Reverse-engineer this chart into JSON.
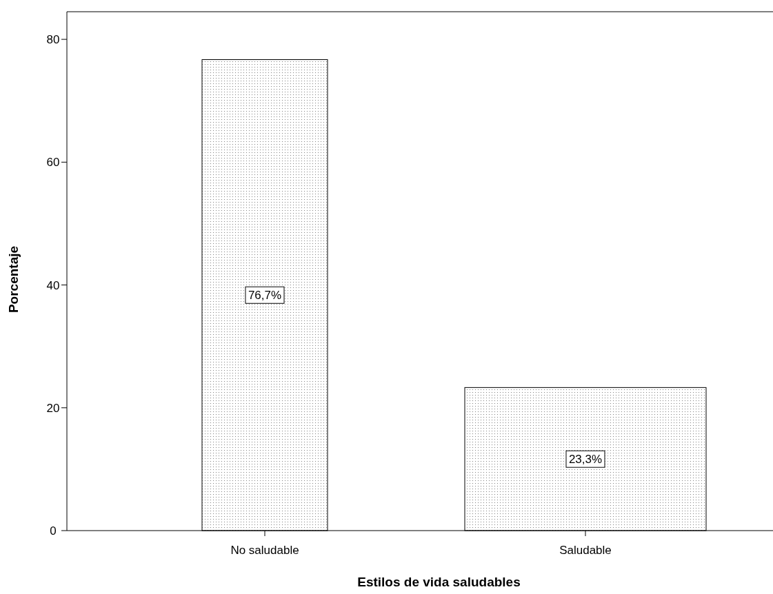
{
  "chart_data": {
    "type": "bar",
    "xlabel": "Estilos de vida saludables",
    "ylabel": "Porcentaje",
    "categories": [
      "No saludable",
      "Saludable"
    ],
    "values": [
      76.7,
      23.3
    ],
    "value_labels": [
      "76,7%",
      "23,3%"
    ],
    "color": "#000000",
    "ylim": [
      0,
      84.5
    ],
    "yticks": [
      0,
      20,
      40,
      60,
      80
    ],
    "grid": false
  }
}
